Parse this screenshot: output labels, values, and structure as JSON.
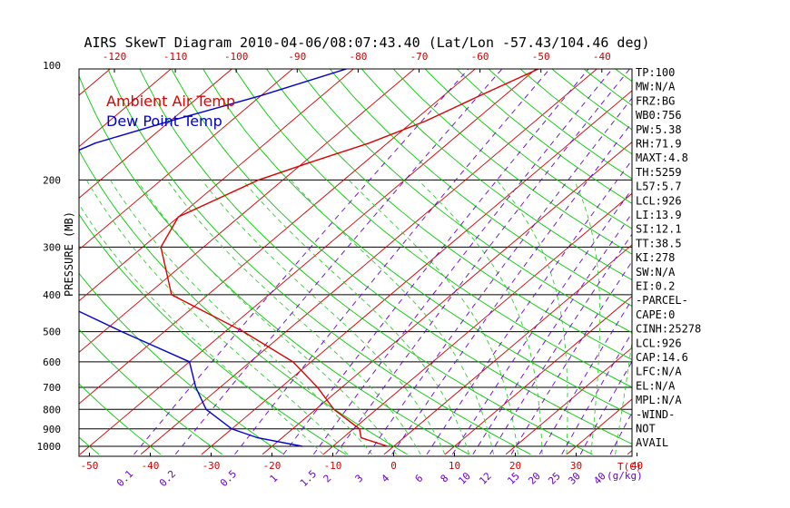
{
  "chart_data": {
    "type": "line",
    "title": "AIRS SkewT Diagram 2010-04-06/08:07:43.40 (Lat/Lon -57.43/104.46 deg)",
    "ylabel": "PRESSURE (MB)",
    "xlabel": "T(C)",
    "mixing_ratio_label": "(g/kg)",
    "top_temperature_ticks": [
      "-120",
      "-110",
      "-100",
      "-90",
      "-80",
      "-70",
      "-60",
      "-50",
      "-40"
    ],
    "bottom_temperature_ticks": [
      "-50",
      "-40",
      "-30",
      "-20",
      "-10",
      "0",
      "10",
      "20",
      "30",
      "40"
    ],
    "pressure_ticks": [
      "100",
      "200",
      "300",
      "400",
      "500",
      "600",
      "700",
      "800",
      "900",
      "1000"
    ],
    "mixing_ratio_ticks": [
      "0.1",
      "0.2",
      "0.5",
      "1",
      "1.5",
      "2",
      "3",
      "4",
      "6",
      "8",
      "10",
      "12",
      "15",
      "20",
      "25",
      "30",
      "40"
    ],
    "ylim": [
      1050,
      100
    ],
    "grid": true,
    "legend": [
      {
        "label": "Ambient Air Temp",
        "color": "#dd0000"
      },
      {
        "label": "Dew Point Temp",
        "color": "#0000cc"
      }
    ],
    "series": [
      {
        "name": "Ambient Air Temp",
        "color": "#dd0000",
        "points": [
          {
            "p": 100,
            "t": -49
          },
          {
            "p": 120,
            "t": -54
          },
          {
            "p": 140,
            "t": -58
          },
          {
            "p": 160,
            "t": -63
          },
          {
            "p": 180,
            "t": -69
          },
          {
            "p": 200,
            "t": -74
          },
          {
            "p": 250,
            "t": -80
          },
          {
            "p": 300,
            "t": -77
          },
          {
            "p": 400,
            "t": -66
          },
          {
            "p": 500,
            "t": -47
          },
          {
            "p": 600,
            "t": -33
          },
          {
            "p": 700,
            "t": -24
          },
          {
            "p": 800,
            "t": -17
          },
          {
            "p": 900,
            "t": -9
          },
          {
            "p": 950,
            "t": -7
          },
          {
            "p": 1000,
            "t": -1
          }
        ]
      },
      {
        "name": "Dew Point Temp",
        "color": "#0000cc",
        "points": [
          {
            "p": 100,
            "t": -80
          },
          {
            "p": 120,
            "t": -90
          },
          {
            "p": 140,
            "t": -100
          },
          {
            "p": 160,
            "t": -108
          },
          {
            "p": 200,
            "t": -115
          },
          {
            "p": 250,
            "t": -119
          },
          {
            "p": 300,
            "t": -105
          },
          {
            "p": 400,
            "t": -87
          },
          {
            "p": 500,
            "t": -67
          },
          {
            "p": 600,
            "t": -50
          },
          {
            "p": 700,
            "t": -44
          },
          {
            "p": 800,
            "t": -38
          },
          {
            "p": 900,
            "t": -30
          },
          {
            "p": 950,
            "t": -24
          },
          {
            "p": 1000,
            "t": -15
          }
        ]
      }
    ],
    "indices": [
      "TP:100",
      "MW:N/A",
      "FRZ:BG",
      "WB0:756",
      "PW:5.38",
      "RH:71.9",
      "MAXT:4.8",
      "TH:5259",
      "L57:5.7",
      "LCL:926",
      "LI:13.9",
      "SI:12.1",
      "TT:38.5",
      "KI:278",
      "SW:N/A",
      "EI:0.2",
      "-PARCEL-",
      "CAPE:0",
      "CINH:25278",
      "LCL:926",
      "CAP:14.6",
      "LFC:N/A",
      "EL:N/A",
      "MPL:N/A",
      "-WIND-",
      "NOT",
      "AVAIL"
    ]
  },
  "colors": {
    "isotherm": "#cc0000",
    "dry_adiabat": "#00cc00",
    "moist_adiabat": "#33cc33",
    "mixing_ratio": "#6600cc",
    "isobar": "#000000",
    "text": "#000000",
    "temp_tick": "#cc0000",
    "mix_tick": "#6600cc"
  }
}
